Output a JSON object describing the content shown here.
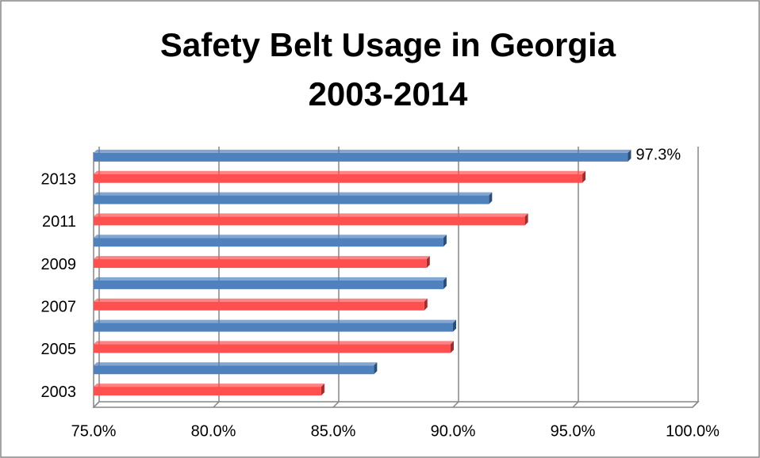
{
  "chart_data": {
    "type": "bar",
    "orientation": "horizontal",
    "title": [
      "Safety Belt Usage in Georgia",
      "2003-2014"
    ],
    "categories": [
      "2003",
      null,
      "2005",
      null,
      "2007",
      null,
      "2009",
      null,
      "2011",
      null,
      "2013",
      null
    ],
    "values": [
      84.5,
      86.7,
      89.9,
      90.0,
      88.8,
      89.6,
      88.9,
      89.6,
      93.0,
      91.5,
      95.4,
      97.3
    ],
    "value_labels": [
      null,
      null,
      null,
      null,
      null,
      null,
      null,
      null,
      null,
      null,
      null,
      "97.3%"
    ],
    "colors": [
      "#ff4f4f",
      "#4f81bd",
      "#ff4f4f",
      "#4f81bd",
      "#ff4f4f",
      "#4f81bd",
      "#ff4f4f",
      "#4f81bd",
      "#ff4f4f",
      "#4f81bd",
      "#ff4f4f",
      "#4f81bd"
    ],
    "xlim": [
      75,
      100
    ],
    "xticks": [
      {
        "value": 75,
        "label": "75.0%"
      },
      {
        "value": 80,
        "label": "80.0%"
      },
      {
        "value": 85,
        "label": "85.0%"
      },
      {
        "value": 90,
        "label": "90.0%"
      },
      {
        "value": 95,
        "label": "95.0%"
      },
      {
        "value": 100,
        "label": "100.0%"
      }
    ],
    "grid": true
  }
}
